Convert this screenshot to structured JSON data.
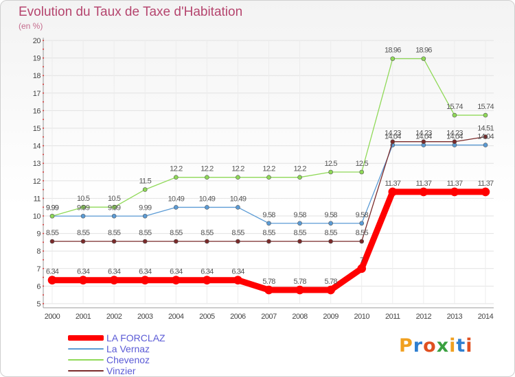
{
  "title": "Evolution du Taux de Taxe d'Habitation",
  "subtitle": "(en %)",
  "logo": {
    "text": "Proxiti",
    "colors": [
      "#f0a020",
      "#2f7fd0",
      "#e05020",
      "#3aa040"
    ]
  },
  "chart_data": {
    "type": "line",
    "title": "Evolution du Taux de Taxe d'Habitation",
    "ylabel": "(en %)",
    "xlabel": "",
    "ylim": [
      5,
      20
    ],
    "yticks": [
      5,
      6,
      7,
      8,
      9,
      10,
      11,
      12,
      13,
      14,
      15,
      16,
      17,
      18,
      19,
      20
    ],
    "grid": true,
    "legend": "bottom-left",
    "x": [
      "2000",
      "2001",
      "2002",
      "2003",
      "2004",
      "2005",
      "2006",
      "2007",
      "2008",
      "2009",
      "2010",
      "2011",
      "2012",
      "2013",
      "2014"
    ],
    "series": [
      {
        "name": "LA FORCLAZ",
        "color": "#ff0000",
        "values": [
          6.34,
          6.34,
          6.34,
          6.34,
          6.34,
          6.34,
          6.34,
          5.78,
          5.78,
          5.78,
          7,
          11.37,
          11.37,
          11.37,
          11.37
        ]
      },
      {
        "name": "La Vernaz",
        "color": "#5b9bd5",
        "values": [
          9.99,
          9.99,
          9.99,
          9.99,
          10.49,
          10.49,
          10.49,
          9.58,
          9.58,
          9.58,
          9.58,
          14.04,
          14.04,
          14.04,
          14.04
        ]
      },
      {
        "name": "Chevenoz",
        "color": "#8fd957",
        "values": [
          9.99,
          10.5,
          10.5,
          11.5,
          12.2,
          12.2,
          12.2,
          12.2,
          12.2,
          12.5,
          12.5,
          18.96,
          18.96,
          15.74,
          15.74
        ]
      },
      {
        "name": "Vinzier",
        "color": "#7a2a2a",
        "values": [
          8.55,
          8.55,
          8.55,
          8.55,
          8.55,
          8.55,
          8.55,
          8.55,
          8.55,
          8.55,
          8.55,
          14.23,
          14.23,
          14.23,
          14.51
        ]
      }
    ]
  }
}
